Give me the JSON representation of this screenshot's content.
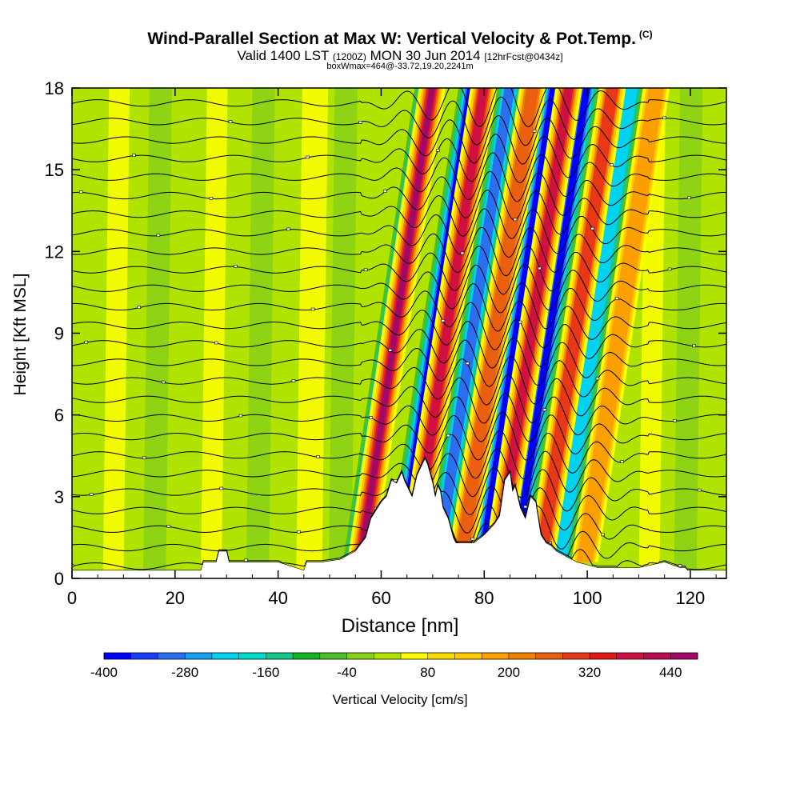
{
  "chart_data": {
    "type": "heatmap",
    "title": "Wind-Parallel Section at Max W: Vertical Velocity & Pot.Temp.",
    "title_mark": "(C)",
    "subtitle_main_a": "Valid 1400 LST",
    "subtitle_small_a": "(1200Z)",
    "subtitle_main_b": "MON 30 Jun 2014",
    "subtitle_small_b": "[12hrFcst@0434z]",
    "subtitle2": "boxWmax=464@-33.72,19.20,2241m",
    "xlabel": "Distance [nm]",
    "ylabel": "Height [Kft MSL]",
    "xlim": [
      0,
      127
    ],
    "ylim": [
      0,
      18
    ],
    "xticks": [
      0,
      20,
      40,
      60,
      80,
      100,
      120
    ],
    "yticks": [
      0,
      3,
      6,
      9,
      12,
      15,
      18
    ],
    "colorbar": {
      "label": "Vertical Velocity [cm/s]",
      "range": [
        -400,
        480
      ],
      "step": 40,
      "tick_labels": [
        -400,
        -280,
        -160,
        -40,
        80,
        200,
        320,
        440
      ],
      "colors": [
        "#0000ff",
        "#1a3cf5",
        "#2a6ff0",
        "#14a0f0",
        "#00d2f0",
        "#00dcc8",
        "#10c88c",
        "#14b41e",
        "#4cc026",
        "#88d018",
        "#b0e400",
        "#ffff00",
        "#f8dc00",
        "#ffc800",
        "#fca000",
        "#f08000",
        "#ea6010",
        "#e83818",
        "#e01818",
        "#d01040",
        "#b80e50",
        "#a00a66"
      ]
    },
    "terrain_profile": {
      "x": [
        0,
        25,
        25.5,
        28,
        28.5,
        30,
        30.5,
        40,
        45,
        45.5,
        48,
        48.5,
        52,
        55,
        57,
        58,
        60,
        61,
        62,
        63,
        64,
        64.5,
        66,
        67,
        68,
        68.5,
        69,
        70,
        70.5,
        71,
        71.5,
        72,
        73,
        74,
        74.5,
        75,
        76,
        78,
        80,
        82,
        83,
        84,
        85,
        85.5,
        86,
        87,
        88,
        89,
        90,
        91,
        92,
        93,
        94,
        95,
        96,
        98,
        100,
        102,
        105,
        110,
        115,
        118,
        119,
        119.5,
        120,
        127
      ],
      "height_kft": [
        0.3,
        0.3,
        0.6,
        0.6,
        1.0,
        1.0,
        0.6,
        0.6,
        0.3,
        0.6,
        0.6,
        0.6,
        0.7,
        1.0,
        1.5,
        2.2,
        2.8,
        3.0,
        3.6,
        3.5,
        3.9,
        3.6,
        3.0,
        3.8,
        4.2,
        4.4,
        4.2,
        3.5,
        3.0,
        3.4,
        3.2,
        2.6,
        2.2,
        1.5,
        1.3,
        1.3,
        1.3,
        1.3,
        1.6,
        2.0,
        2.3,
        3.6,
        3.9,
        3.2,
        3.4,
        2.6,
        2.2,
        3.0,
        2.8,
        1.6,
        1.3,
        1.2,
        1.0,
        0.9,
        0.8,
        0.6,
        0.5,
        0.4,
        0.4,
        0.4,
        0.6,
        0.4,
        0.4,
        0.3,
        0.3,
        0.3
      ]
    },
    "updraft_bands_x_at_surface": [
      61.5,
      71.5,
      81,
      88,
      96.5,
      105
    ],
    "downdraft_bands_x_at_surface": [
      60.5,
      69,
      76.5,
      85,
      91.5,
      100
    ],
    "updraft_peak_w_cm_s": 464,
    "contour_field": "Potential Temperature",
    "contour_count": 26
  }
}
